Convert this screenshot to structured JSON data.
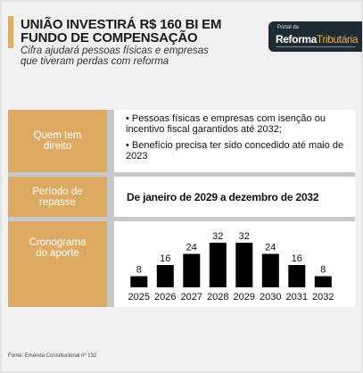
{
  "header": {
    "title_lines": [
      "UNIÃO INVESTIRÁ R$ 160 BI EM",
      "FUNDO DE COMPENSAÇÃO"
    ],
    "subtitle_lines": [
      "Cifra ajudará pessoas físicas e empresas",
      "que tiveram perdas com reforma"
    ],
    "accent_color": "#e3ad5c"
  },
  "logo": {
    "small_text": "Portal da",
    "brand_main": "Reforma",
    "brand_accent": "Tributária",
    "bg_color": "#1f2b33"
  },
  "table": {
    "rows": [
      {
        "label": "Quem tem\ndireito",
        "bullets": [
          "• Pessoas físicas e empresas com isenção ou incentivo fiscal garantidos até 2032;",
          "• Benefício precisa ter sido concedido até maio de 2023"
        ]
      },
      {
        "label": "Período de\nrepasse",
        "value": "De janeiro de 2029 a dezembro de 2032"
      },
      {
        "label": "Cronograma\ndo aporte"
      }
    ],
    "label_color": "#dcaa63"
  },
  "chart_data": {
    "type": "bar",
    "categories": [
      "2025",
      "2026",
      "2027",
      "2028",
      "2029",
      "2030",
      "2031",
      "2032"
    ],
    "values": [
      8,
      16,
      24,
      32,
      32,
      24,
      16,
      8
    ],
    "title": "",
    "xlabel": "",
    "ylabel": "",
    "ylim": [
      0,
      32
    ],
    "bar_color": "#000000"
  },
  "footer": {
    "source": "Fonte: Emenda Constitucional nº 132"
  }
}
